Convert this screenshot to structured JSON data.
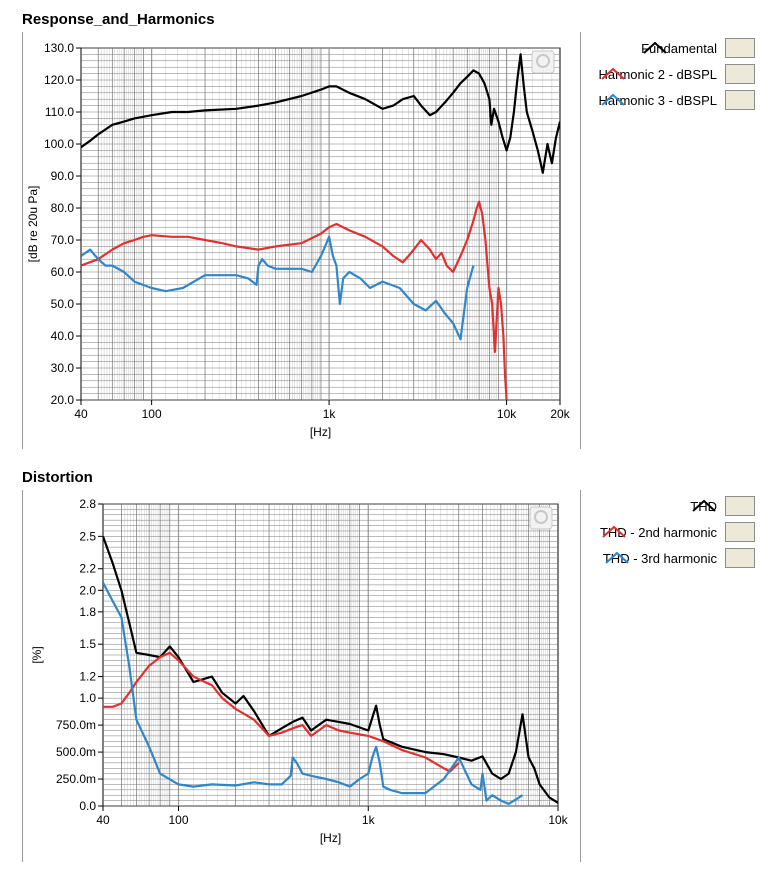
{
  "panels": [
    {
      "title": "Response_and_Harmonics",
      "legend": [
        {
          "label": "Fundamental",
          "color": "#000000",
          "icon": "line-swatch-icon"
        },
        {
          "label": "Harmonic 2 - dBSPL",
          "color": "#e03030",
          "icon": "line-swatch-icon"
        },
        {
          "label": "Harmonic 3 - dBSPL",
          "color": "#2f86c8",
          "icon": "line-swatch-icon"
        }
      ]
    },
    {
      "title": "Distortion",
      "legend": [
        {
          "label": "THD",
          "color": "#000000",
          "icon": "line-swatch-icon"
        },
        {
          "label": "THD - 2nd harmonic",
          "color": "#e03030",
          "icon": "line-swatch-icon"
        },
        {
          "label": "THD - 3rd harmonic",
          "color": "#2f86c8",
          "icon": "line-swatch-icon"
        }
      ]
    }
  ],
  "chart_data": [
    {
      "type": "line",
      "title": "Response_and_Harmonics",
      "xlabel": "[Hz]",
      "ylabel": "[dB re 20u Pa]",
      "xscale": "log",
      "xlim": [
        40,
        20000
      ],
      "ylim": [
        20,
        130
      ],
      "xticks": [
        40,
        100,
        1000,
        10000,
        20000
      ],
      "xtick_labels": [
        "40",
        "100",
        "1k",
        "10k",
        "20k"
      ],
      "yticks": [
        20,
        30,
        40,
        50,
        60,
        70,
        80,
        90,
        100,
        110,
        120,
        130
      ],
      "ytick_labels": [
        "20.0",
        "30.0",
        "40.0",
        "50.0",
        "60.0",
        "70.0",
        "80.0",
        "90.0",
        "100.0",
        "110.0",
        "120.0",
        "130.0"
      ],
      "grid": true,
      "legend_position": "right",
      "series": [
        {
          "name": "Fundamental",
          "color": "#000000",
          "x": [
            40,
            45,
            50,
            60,
            70,
            80,
            100,
            130,
            160,
            200,
            300,
            400,
            500,
            700,
            900,
            1000,
            1100,
            1300,
            1600,
            2000,
            2300,
            2600,
            3000,
            3300,
            3700,
            4000,
            4500,
            5000,
            5500,
            6000,
            6500,
            7000,
            7500,
            8000,
            8200,
            8500,
            9000,
            9500,
            10000,
            10500,
            11000,
            11500,
            12000,
            12500,
            13000,
            14000,
            15000,
            16000,
            17000,
            18000,
            19000,
            20000
          ],
          "y": [
            99,
            101,
            103,
            106,
            107,
            108,
            109,
            110,
            110,
            110.5,
            111,
            112,
            113,
            115,
            117,
            118,
            118,
            116,
            114,
            111,
            112,
            114,
            115,
            112,
            109,
            110,
            113,
            116,
            119,
            121,
            123,
            122,
            119,
            114,
            106,
            111,
            107,
            102,
            98,
            102,
            110,
            120,
            128,
            118,
            110,
            104,
            98,
            91,
            100,
            94,
            102,
            107
          ]
        },
        {
          "name": "Harmonic 2 - dBSPL",
          "color": "#e03030",
          "x": [
            40,
            50,
            60,
            70,
            80,
            90,
            100,
            130,
            160,
            200,
            250,
            300,
            400,
            500,
            700,
            900,
            1000,
            1100,
            1300,
            1600,
            2000,
            2300,
            2600,
            2800,
            3000,
            3300,
            3700,
            4000,
            4300,
            4600,
            5000,
            5500,
            6000,
            6500,
            6800,
            7000,
            7300,
            7600,
            8000,
            8300,
            8600,
            9000,
            9300,
            9600,
            9800,
            10000
          ],
          "y": [
            62,
            64,
            67,
            69,
            70,
            71,
            71.5,
            71,
            71,
            70,
            69,
            68,
            67,
            68,
            69,
            72,
            74,
            75,
            73,
            71,
            68,
            65,
            63,
            65,
            67,
            70,
            67,
            64,
            66,
            62,
            60,
            65,
            70,
            76,
            80,
            82,
            78,
            70,
            55,
            50,
            35,
            55,
            50,
            40,
            28,
            20
          ]
        },
        {
          "name": "Harmonic 3 - dBSPL",
          "color": "#2f86c8",
          "x": [
            40,
            45,
            50,
            55,
            60,
            70,
            80,
            100,
            120,
            150,
            200,
            250,
            300,
            350,
            390,
            400,
            420,
            450,
            500,
            600,
            700,
            800,
            900,
            1000,
            1050,
            1100,
            1150,
            1200,
            1300,
            1500,
            1700,
            2000,
            2500,
            3000,
            3500,
            4000,
            4500,
            5000,
            5500,
            6000,
            6500
          ],
          "y": [
            65,
            67,
            64,
            62,
            62,
            60,
            57,
            55,
            54,
            55,
            59,
            59,
            59,
            58,
            56,
            62,
            64,
            62,
            61,
            61,
            61,
            60,
            65,
            71,
            65,
            62,
            50,
            58,
            60,
            58,
            55,
            57,
            55,
            50,
            48,
            51,
            47,
            44,
            39,
            55,
            62
          ]
        }
      ]
    },
    {
      "type": "line",
      "title": "Distortion",
      "xlabel": "[Hz]",
      "ylabel": "[%]",
      "xscale": "log",
      "xlim": [
        40,
        10000
      ],
      "ylim": [
        0,
        2.8
      ],
      "xticks": [
        40,
        100,
        1000,
        10000
      ],
      "xtick_labels": [
        "40",
        "100",
        "1k",
        "10k"
      ],
      "yticks": [
        0,
        0.25,
        0.5,
        0.75,
        1.0,
        1.2,
        1.5,
        1.8,
        2.0,
        2.2,
        2.5,
        2.8
      ],
      "ytick_labels": [
        "0.0",
        "250.0m",
        "500.0m",
        "750.0m",
        "1.0",
        "1.2",
        "1.5",
        "1.8",
        "2.0",
        "2.2",
        "2.5",
        "2.8"
      ],
      "grid": true,
      "legend_position": "right",
      "series": [
        {
          "name": "THD",
          "color": "#000000",
          "x": [
            40,
            45,
            50,
            55,
            60,
            70,
            80,
            90,
            100,
            120,
            150,
            170,
            200,
            220,
            250,
            300,
            350,
            400,
            450,
            500,
            600,
            700,
            800,
            1000,
            1100,
            1150,
            1200,
            1500,
            2000,
            2500,
            3000,
            3500,
            4000,
            4500,
            5000,
            5500,
            6000,
            6500,
            7000,
            7500,
            8000,
            9000,
            10000
          ],
          "y": [
            2.5,
            2.25,
            2.0,
            1.7,
            1.42,
            1.4,
            1.38,
            1.48,
            1.38,
            1.15,
            1.2,
            1.05,
            0.95,
            1.02,
            0.88,
            0.65,
            0.72,
            0.78,
            0.82,
            0.7,
            0.8,
            0.78,
            0.76,
            0.7,
            0.93,
            0.75,
            0.62,
            0.55,
            0.5,
            0.48,
            0.45,
            0.42,
            0.46,
            0.3,
            0.25,
            0.3,
            0.5,
            0.85,
            0.45,
            0.35,
            0.2,
            0.08,
            0.03
          ]
        },
        {
          "name": "THD - 2nd harmonic",
          "color": "#e03030",
          "x": [
            40,
            45,
            50,
            55,
            60,
            70,
            80,
            90,
            100,
            120,
            150,
            170,
            200,
            250,
            300,
            350,
            400,
            450,
            500,
            600,
            700,
            800,
            1000,
            1200,
            1500,
            2000,
            2500,
            2700,
            3000
          ],
          "y": [
            0.92,
            0.92,
            0.95,
            1.05,
            1.15,
            1.3,
            1.38,
            1.42,
            1.35,
            1.2,
            1.12,
            1.0,
            0.9,
            0.8,
            0.65,
            0.68,
            0.72,
            0.75,
            0.65,
            0.75,
            0.7,
            0.68,
            0.65,
            0.6,
            0.52,
            0.45,
            0.35,
            0.32,
            0.4
          ]
        },
        {
          "name": "THD - 3rd harmonic",
          "color": "#2f86c8",
          "x": [
            40,
            45,
            50,
            55,
            60,
            70,
            80,
            100,
            120,
            150,
            200,
            250,
            300,
            350,
            390,
            400,
            420,
            450,
            500,
            600,
            700,
            800,
            900,
            1000,
            1050,
            1100,
            1150,
            1200,
            1300,
            1500,
            2000,
            2500,
            3000,
            3500,
            3900,
            4000,
            4200,
            4500,
            5000,
            5500,
            6000,
            6500
          ],
          "y": [
            2.07,
            1.9,
            1.75,
            1.3,
            0.8,
            0.55,
            0.3,
            0.2,
            0.18,
            0.2,
            0.19,
            0.22,
            0.2,
            0.2,
            0.28,
            0.45,
            0.4,
            0.3,
            0.28,
            0.25,
            0.22,
            0.18,
            0.25,
            0.3,
            0.45,
            0.55,
            0.4,
            0.18,
            0.15,
            0.12,
            0.12,
            0.25,
            0.45,
            0.2,
            0.15,
            0.3,
            0.05,
            0.1,
            0.05,
            0.02,
            0.06,
            0.1
          ]
        }
      ]
    }
  ]
}
